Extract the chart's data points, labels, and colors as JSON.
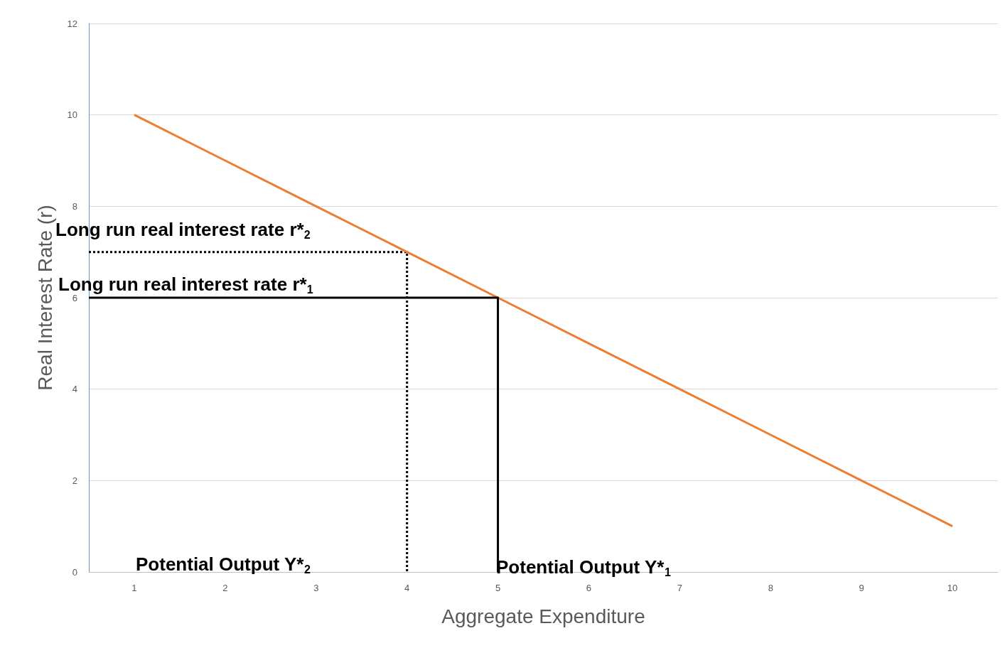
{
  "chart_data": {
    "type": "line",
    "xlabel": "Aggregate Expenditure",
    "ylabel": "Real Interest Rate (r)",
    "xlim": [
      0.5,
      10.5
    ],
    "xticks": [
      1,
      2,
      3,
      4,
      5,
      6,
      7,
      8,
      9,
      10
    ],
    "ylim": [
      0,
      12
    ],
    "yticks": [
      0,
      2,
      4,
      6,
      8,
      10,
      12
    ],
    "grid": "y",
    "marker": "none",
    "series": [
      {
        "color": "#ed7d31",
        "x": [
          1,
          2,
          3,
          4,
          5,
          6,
          7,
          8,
          9,
          10
        ],
        "values": [
          10,
          9,
          8,
          7,
          6,
          5,
          4,
          3,
          2,
          1
        ],
        "line_style": "solid"
      },
      {
        "color": "#000000",
        "x": [
          0.5,
          5,
          5
        ],
        "values": [
          6,
          6,
          0
        ],
        "line_style": "solid"
      },
      {
        "color": "#000000",
        "x": [
          0.5,
          4,
          4
        ],
        "values": [
          7,
          7,
          0
        ],
        "line_style": "dotted"
      }
    ],
    "annotations": [
      "Long run real interest rate r*$_{2}$",
      "Long run real interest rate r*$_{1}$",
      "Potential Output Y*$_{2}$",
      "Potential Output Y*$_{1}$"
    ]
  }
}
